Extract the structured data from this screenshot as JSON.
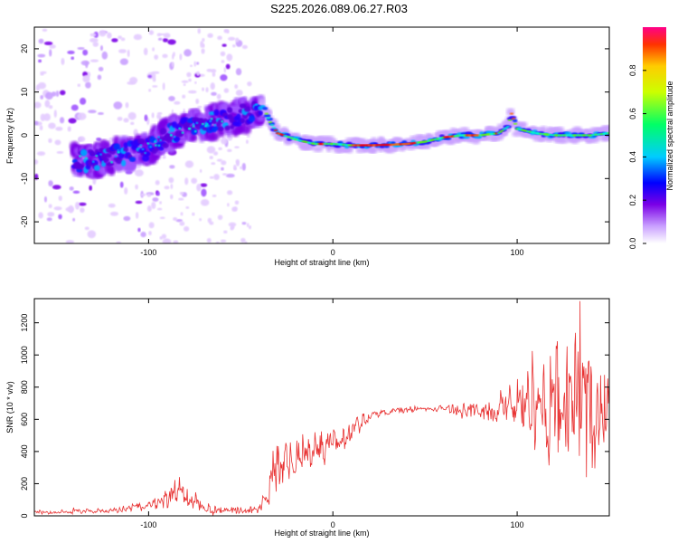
{
  "title": "S225.2026.089.06.27.R03",
  "chart_data": [
    {
      "type": "heatmap",
      "title": "S225.2026.089.06.27.R03",
      "xlabel": "Height of straight line (km)",
      "ylabel": "Frequency (Hz)",
      "xlim": [
        -162,
        150
      ],
      "ylim": [
        -25,
        25
      ],
      "xticks": [
        -100,
        0,
        100
      ],
      "yticks": [
        -20,
        -10,
        0,
        10,
        20
      ],
      "colorbar": {
        "label": "Normalized spectral amplitude",
        "range": [
          0,
          1
        ],
        "ticks": [
          0.0,
          0.2,
          0.4,
          0.6,
          0.8
        ]
      },
      "ridge": {
        "x": [
          -135,
          -120,
          -100,
          -85,
          -70,
          -55,
          -45,
          -38,
          -34,
          -30,
          -20,
          -10,
          0,
          10,
          20,
          30,
          40,
          50,
          60,
          70,
          80,
          90,
          95,
          97,
          100,
          110,
          120,
          130,
          140,
          150
        ],
        "y": [
          -6,
          -5,
          -3,
          1,
          2.5,
          4,
          5,
          7,
          3,
          0.5,
          -1,
          -2,
          -2,
          -2.3,
          -2.3,
          -2.2,
          -2,
          -1.5,
          -0.5,
          0,
          0,
          0.5,
          2,
          5,
          1.5,
          0.5,
          0,
          0,
          0,
          0.5
        ]
      }
    },
    {
      "type": "line",
      "xlabel": "Height of straight line (km)",
      "ylabel": "SNR (10 * v/v)",
      "xlim": [
        -162,
        150
      ],
      "ylim": [
        0,
        1350
      ],
      "xticks": [
        -100,
        0,
        100
      ],
      "yticks": [
        0,
        200,
        400,
        600,
        800,
        1000,
        1200
      ],
      "series": [
        {
          "name": "SNR",
          "color": "#e83232",
          "x": [
            -162,
            -140,
            -120,
            -100,
            -90,
            -85,
            -80,
            -70,
            -60,
            -50,
            -40,
            -36,
            -34,
            -32,
            -30,
            -25,
            -20,
            -15,
            -10,
            -5,
            0,
            5,
            10,
            15,
            20,
            25,
            30,
            40,
            50,
            60,
            70,
            80,
            90,
            95,
            100,
            105,
            110,
            115,
            120,
            125,
            130,
            135,
            140,
            145,
            150
          ],
          "y": [
            20,
            25,
            35,
            60,
            110,
            170,
            120,
            45,
            35,
            35,
            40,
            120,
            230,
            280,
            300,
            340,
            360,
            400,
            420,
            440,
            460,
            480,
            520,
            580,
            620,
            640,
            650,
            660,
            665,
            670,
            660,
            650,
            650,
            700,
            700,
            720,
            750,
            650,
            730,
            720,
            760,
            760,
            680,
            730,
            720
          ],
          "amp": [
            15,
            15,
            20,
            30,
            60,
            110,
            60,
            25,
            20,
            20,
            25,
            70,
            120,
            150,
            160,
            150,
            140,
            120,
            100,
            90,
            80,
            80,
            70,
            60,
            40,
            25,
            20,
            20,
            20,
            20,
            40,
            60,
            80,
            120,
            180,
            260,
            350,
            380,
            380,
            370,
            380,
            390,
            400,
            420,
            420
          ]
        }
      ]
    }
  ]
}
